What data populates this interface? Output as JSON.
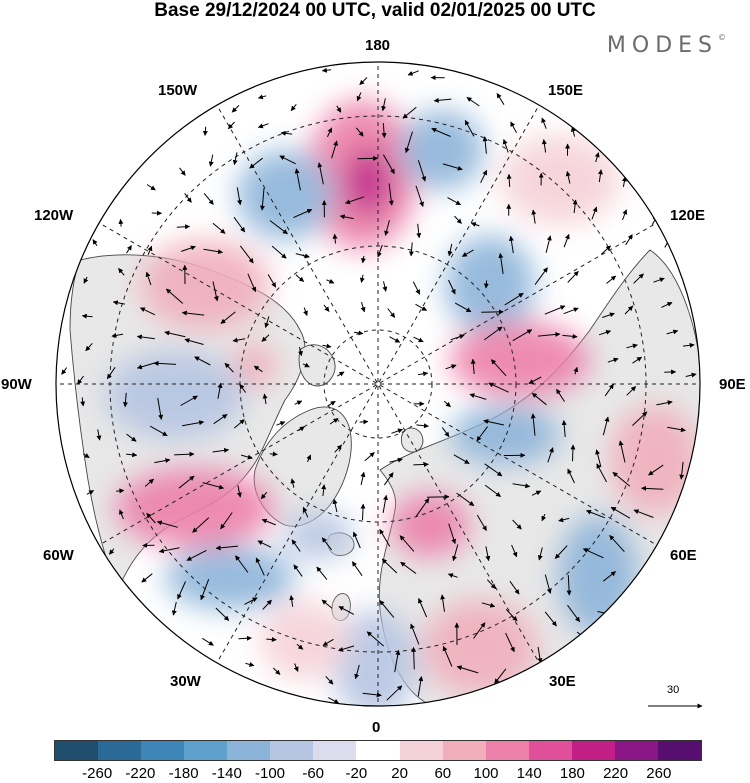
{
  "title": "Base 29/12/2024 00 UTC, valid 02/01/2025 00 UTC",
  "brand": {
    "name": "MODES",
    "mark": "©"
  },
  "map": {
    "projection": "north-polar-stereographic",
    "longitude_labels": {
      "top": "180",
      "bottom": "0",
      "left": "90W",
      "right": "90E",
      "upper_left_1": "150W",
      "upper_left_2": "120W",
      "lower_left_1": "60W",
      "lower_left_2": "30W",
      "upper_right_1": "150E",
      "upper_right_2": "120E",
      "lower_right_1": "60E",
      "lower_right_2": "30E"
    },
    "reference_vector_value": "30",
    "colors": {
      "land_fill": "#e8e8e8",
      "coastline": "#444444",
      "graticule": "#222222"
    }
  },
  "colorbar": {
    "tick_labels": [
      "-260",
      "-220",
      "-180",
      "-140",
      "-100",
      "-60",
      "-20",
      "20",
      "60",
      "100",
      "140",
      "180",
      "220",
      "260"
    ],
    "colors": [
      "#1f4e6f",
      "#2b6a96",
      "#3f86b8",
      "#5ea1cc",
      "#8cb4d9",
      "#b5c5e2",
      "#dcdcee",
      "#ffffff",
      "#f5d2d8",
      "#f0aebb",
      "#ec80a8",
      "#e0509a",
      "#c11f85",
      "#8a1585",
      "#560f6f"
    ]
  }
}
